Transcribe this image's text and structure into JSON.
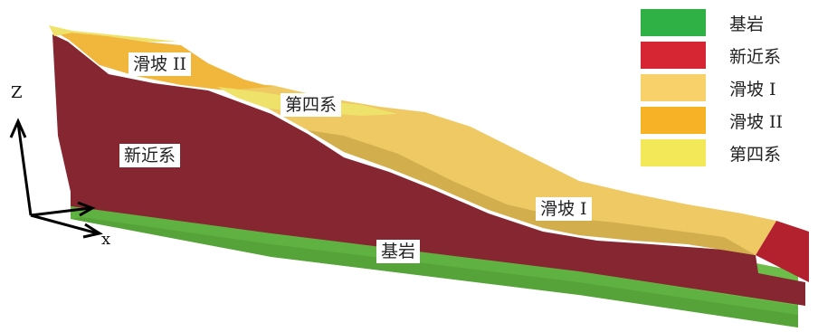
{
  "legend": {
    "items": [
      {
        "label": "基岩",
        "color": "#2fb146"
      },
      {
        "label": "新近系",
        "color": "#d72633"
      },
      {
        "label": "滑坡 I",
        "color": "#f9d16a"
      },
      {
        "label": "滑坡 II",
        "color": "#f7b226"
      },
      {
        "label": "第四系",
        "color": "#f2e858"
      }
    ]
  },
  "labels": {
    "landslide2": "滑坡 II",
    "quaternary": "第四系",
    "neogene": "新近系",
    "landslide1": "滑坡 I",
    "bedrock": "基岩"
  },
  "axes": {
    "z": "Z",
    "x": "x"
  },
  "model_colors": {
    "bedrock_top": "#6cbd49",
    "bedrock_front": "#5fb241",
    "neogene_front": "#862631",
    "neogene_right": "#b3202e",
    "landslide1": "#eec964",
    "landslide1_dark": "#caa445",
    "landslide2": "#f1b73c",
    "quaternary": "#eee26a"
  }
}
